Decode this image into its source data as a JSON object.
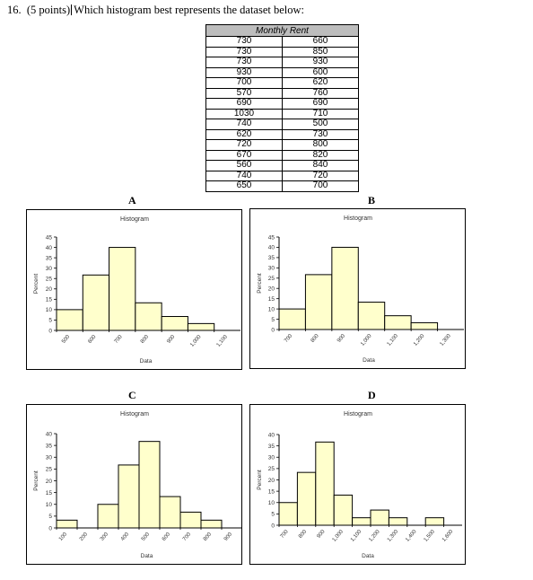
{
  "question": {
    "number": "16.",
    "points": "(5 points)",
    "text": "Which histogram best represents the dataset below:"
  },
  "table": {
    "header": "Monthly Rent",
    "rows": [
      [
        "730",
        "660"
      ],
      [
        "730",
        "850"
      ],
      [
        "730",
        "930"
      ],
      [
        "930",
        "600"
      ],
      [
        "700",
        "620"
      ],
      [
        "570",
        "760"
      ],
      [
        "690",
        "690"
      ],
      [
        "1030",
        "710"
      ],
      [
        "740",
        "500"
      ],
      [
        "620",
        "730"
      ],
      [
        "720",
        "800"
      ],
      [
        "670",
        "820"
      ],
      [
        "560",
        "840"
      ],
      [
        "740",
        "720"
      ],
      [
        "650",
        "700"
      ]
    ]
  },
  "charts": [
    {
      "letter": "A",
      "title": "Histogram",
      "xlabel": "Data",
      "ylabel": "Percent"
    },
    {
      "letter": "B",
      "title": "Histogram",
      "xlabel": "Data",
      "ylabel": "Percent"
    },
    {
      "letter": "C",
      "title": "Histogram",
      "xlabel": "Data",
      "ylabel": "Percent"
    },
    {
      "letter": "D",
      "title": "Histogram",
      "xlabel": "Data",
      "ylabel": "Percent"
    }
  ],
  "chart_data": [
    {
      "type": "bar",
      "title": "Histogram",
      "xlabel": "Data",
      "ylabel": "Percent",
      "ylim": [
        0,
        45
      ],
      "yticks": [
        0,
        5,
        10,
        15,
        20,
        25,
        30,
        35,
        40,
        45
      ],
      "x_ticks": [
        "500",
        "600",
        "700",
        "800",
        "900",
        "1,000",
        "1,100"
      ],
      "values": [
        10,
        26.7,
        40,
        13.3,
        6.7,
        3.3,
        0
      ],
      "bar_color": "#ffffcc"
    },
    {
      "type": "bar",
      "title": "Histogram",
      "xlabel": "Data",
      "ylabel": "Percent",
      "ylim": [
        0,
        45
      ],
      "yticks": [
        0,
        5,
        10,
        15,
        20,
        25,
        30,
        35,
        40,
        45
      ],
      "x_ticks": [
        "700",
        "800",
        "900",
        "1,000",
        "1,100",
        "1,200",
        "1,300"
      ],
      "values": [
        10,
        26.7,
        40,
        13.3,
        6.7,
        3.3,
        0
      ],
      "bar_color": "#ffffcc"
    },
    {
      "type": "bar",
      "title": "Histogram",
      "xlabel": "Data",
      "ylabel": "Percent",
      "ylim": [
        0,
        40
      ],
      "yticks": [
        0,
        5,
        10,
        15,
        20,
        25,
        30,
        35,
        40
      ],
      "x_ticks": [
        "100",
        "200",
        "300",
        "400",
        "500",
        "600",
        "700",
        "800",
        "900"
      ],
      "values": [
        3.3,
        0,
        10,
        26.7,
        36.7,
        13.3,
        6.7,
        3.3,
        0
      ],
      "bar_color": "#ffffcc"
    },
    {
      "type": "bar",
      "title": "Histogram",
      "xlabel": "Data",
      "ylabel": "Percent",
      "ylim": [
        0,
        40
      ],
      "yticks": [
        0,
        5,
        10,
        15,
        20,
        25,
        30,
        35,
        40
      ],
      "x_ticks": [
        "700",
        "800",
        "900",
        "1,000",
        "1,100",
        "1,200",
        "1,300",
        "1,400",
        "1,500",
        "1,600"
      ],
      "values": [
        10,
        23.3,
        36.7,
        13.3,
        3.3,
        6.7,
        3.3,
        0,
        3.3,
        0
      ],
      "bar_color": "#ffffcc"
    }
  ]
}
